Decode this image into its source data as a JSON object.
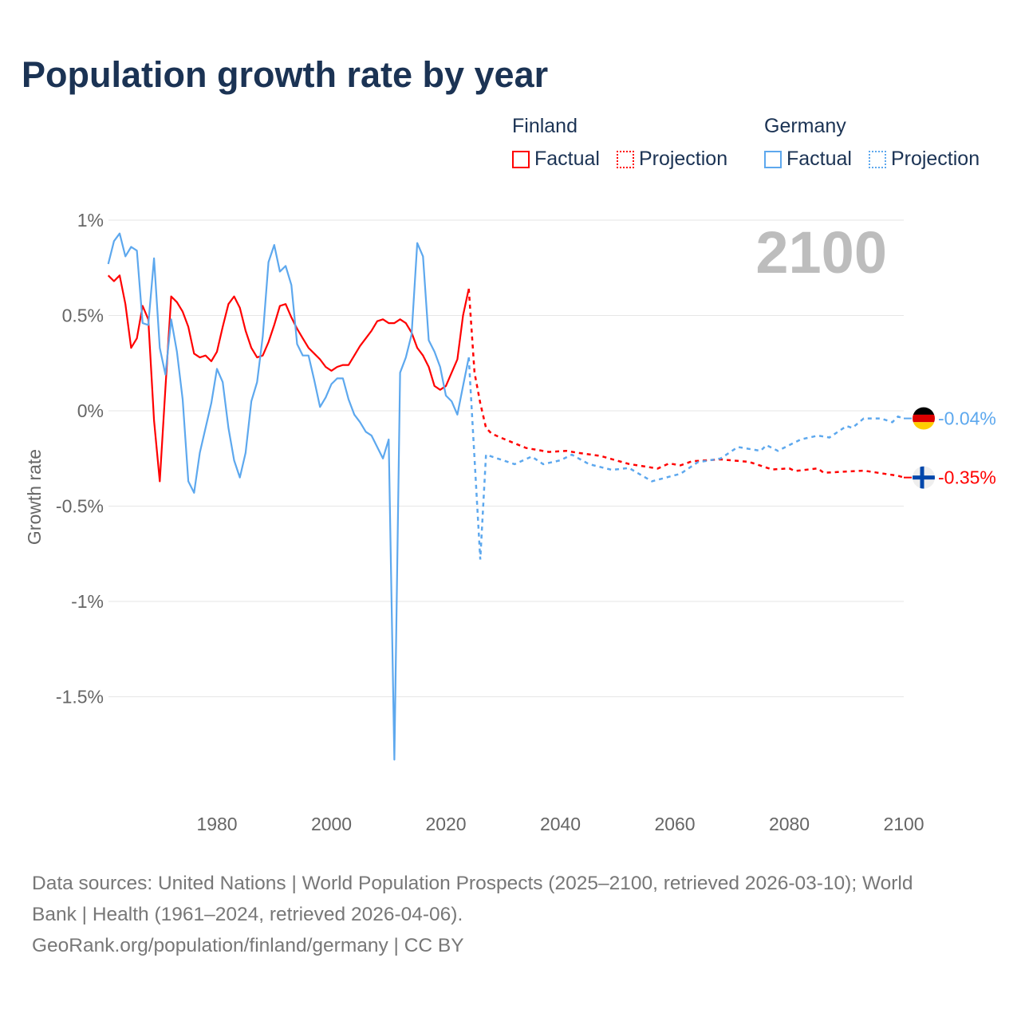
{
  "title": "Population growth rate by year",
  "legend": {
    "groups": [
      {
        "country": "Finland",
        "items": [
          "Factual",
          "Projection"
        ],
        "color": "#ff0000"
      },
      {
        "country": "Germany",
        "items": [
          "Factual",
          "Projection"
        ],
        "color": "#5da8ee"
      }
    ]
  },
  "year_label": "2100",
  "footer": {
    "line1": "Data sources: United Nations | World Population Prospects (2025–2100, retrieved 2026-03-10); World",
    "line2": "Bank | Health (1961–2024, retrieved 2026-04-06).",
    "line3": "GeoRank.org/population/finland/germany | CC BY"
  },
  "chart_data": {
    "type": "line",
    "title": "Population growth rate by year",
    "xlabel": "",
    "ylabel": "Growth rate",
    "xlim": [
      1961,
      2100
    ],
    "ylim": [
      -1.95,
      1.1
    ],
    "xticks": [
      1980,
      2000,
      2020,
      2040,
      2060,
      2080,
      2100
    ],
    "xtick_labels": [
      "1980",
      "2000",
      "2020",
      "2040",
      "2060",
      "2080",
      "2100"
    ],
    "yticks": [
      1,
      0.5,
      0,
      -0.5,
      -1,
      -1.5
    ],
    "ytick_labels": [
      "1%",
      "0.5%",
      "0%",
      "-0.5%",
      "-1%",
      "-1.5%"
    ],
    "grid": true,
    "legend_position": "top-right",
    "series": [
      {
        "name": "Finland",
        "color": "#ff0000",
        "end_label": "-0.35%",
        "flag": "finland",
        "factual_start_year": 1961,
        "factual": [
          0.71,
          0.68,
          0.71,
          0.56,
          0.33,
          0.38,
          0.55,
          0.48,
          -0.05,
          -0.37,
          0.12,
          0.6,
          0.57,
          0.52,
          0.44,
          0.3,
          0.28,
          0.29,
          0.26,
          0.31,
          0.44,
          0.56,
          0.6,
          0.54,
          0.42,
          0.33,
          0.28,
          0.29,
          0.36,
          0.45,
          0.55,
          0.56,
          0.49,
          0.43,
          0.38,
          0.33,
          0.3,
          0.27,
          0.23,
          0.21,
          0.23,
          0.24,
          0.24,
          0.29,
          0.34,
          0.38,
          0.42,
          0.47,
          0.48,
          0.46,
          0.46,
          0.48,
          0.46,
          0.41,
          0.33,
          0.29,
          0.23,
          0.13,
          0.11,
          0.13,
          0.2,
          0.27,
          0.5,
          0.64
        ],
        "projection": [
          [
            2024,
            0.64
          ],
          [
            2025,
            0.2
          ],
          [
            2026,
            0.04
          ],
          [
            2027,
            -0.09
          ],
          [
            2028,
            -0.12
          ],
          [
            2030,
            -0.146
          ],
          [
            2034,
            -0.195
          ],
          [
            2038,
            -0.216
          ],
          [
            2041,
            -0.21
          ],
          [
            2043,
            -0.22
          ],
          [
            2047,
            -0.237
          ],
          [
            2052,
            -0.279
          ],
          [
            2057,
            -0.303
          ],
          [
            2059,
            -0.276
          ],
          [
            2061,
            -0.286
          ],
          [
            2063,
            -0.265
          ],
          [
            2068,
            -0.255
          ],
          [
            2073,
            -0.268
          ],
          [
            2077,
            -0.308
          ],
          [
            2080,
            -0.302
          ],
          [
            2081,
            -0.316
          ],
          [
            2085,
            -0.302
          ],
          [
            2086,
            -0.325
          ],
          [
            2093,
            -0.314
          ],
          [
            2099,
            -0.341
          ],
          [
            2100,
            -0.35
          ]
        ]
      },
      {
        "name": "Germany",
        "color": "#5da8ee",
        "end_label": "-0.04%",
        "flag": "germany",
        "factual_start_year": 1961,
        "factual": [
          0.77,
          0.89,
          0.93,
          0.81,
          0.86,
          0.84,
          0.46,
          0.45,
          0.8,
          0.33,
          0.19,
          0.48,
          0.31,
          0.06,
          -0.37,
          -0.43,
          -0.22,
          -0.09,
          0.04,
          0.22,
          0.15,
          -0.09,
          -0.26,
          -0.35,
          -0.22,
          0.05,
          0.15,
          0.39,
          0.78,
          0.87,
          0.73,
          0.76,
          0.66,
          0.35,
          0.29,
          0.29,
          0.16,
          0.02,
          0.07,
          0.14,
          0.17,
          0.17,
          0.06,
          -0.02,
          -0.06,
          -0.11,
          -0.13,
          -0.19,
          -0.25,
          -0.15,
          -1.83,
          0.2,
          0.28,
          0.4,
          0.88,
          0.81,
          0.37,
          0.31,
          0.23,
          0.08,
          0.05,
          -0.02,
          0.13,
          0.28
        ],
        "projection": [
          [
            2024,
            0.28
          ],
          [
            2026,
            -0.78
          ],
          [
            2027,
            -0.23
          ],
          [
            2029,
            -0.25
          ],
          [
            2030,
            -0.26
          ],
          [
            2032,
            -0.28
          ],
          [
            2035,
            -0.24
          ],
          [
            2037,
            -0.28
          ],
          [
            2040,
            -0.26
          ],
          [
            2042,
            -0.23
          ],
          [
            2045,
            -0.28
          ],
          [
            2049,
            -0.31
          ],
          [
            2052,
            -0.3
          ],
          [
            2056,
            -0.37
          ],
          [
            2061,
            -0.33
          ],
          [
            2064,
            -0.27
          ],
          [
            2068,
            -0.25
          ],
          [
            2071,
            -0.19
          ],
          [
            2075,
            -0.21
          ],
          [
            2076,
            -0.18
          ],
          [
            2078,
            -0.21
          ],
          [
            2082,
            -0.15
          ],
          [
            2085,
            -0.13
          ],
          [
            2087,
            -0.14
          ],
          [
            2090,
            -0.08
          ],
          [
            2091,
            -0.09
          ],
          [
            2093,
            -0.04
          ],
          [
            2096,
            -0.04
          ],
          [
            2098,
            -0.06
          ],
          [
            2099,
            -0.03
          ],
          [
            2100,
            -0.04
          ]
        ]
      }
    ]
  }
}
